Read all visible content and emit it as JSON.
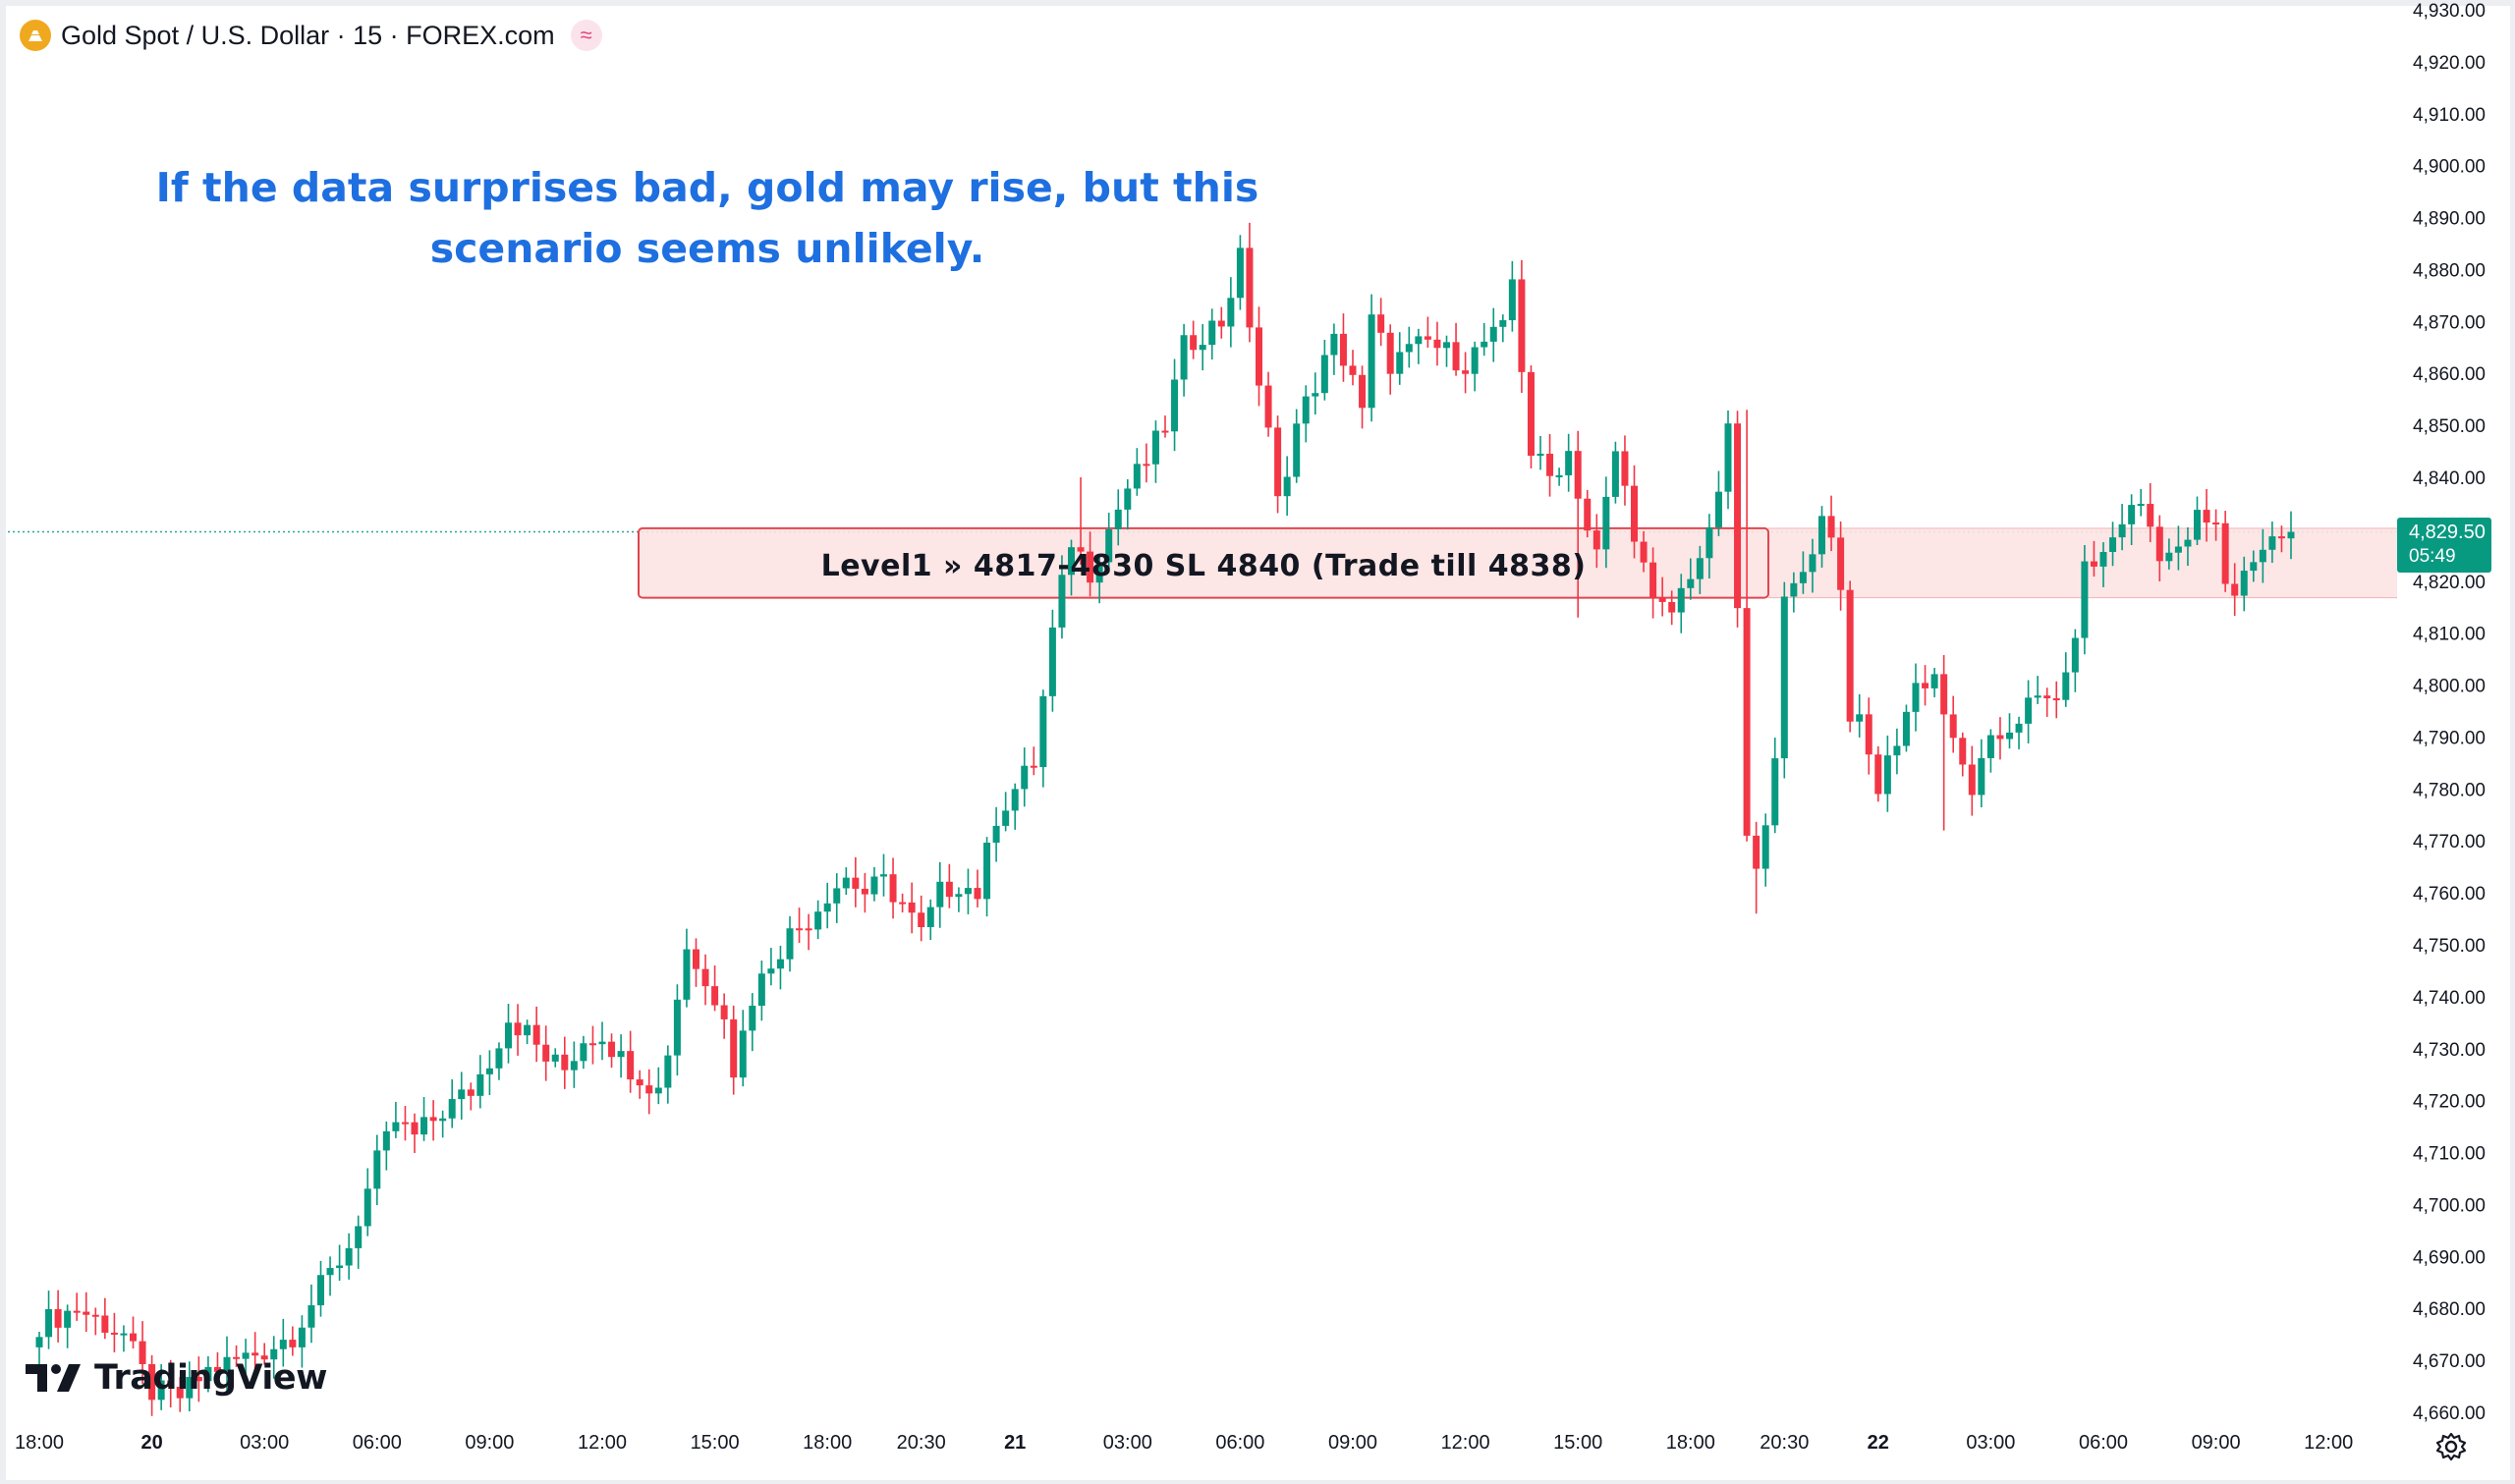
{
  "header": {
    "symbol_title": "Gold Spot / U.S. Dollar · 15 · FOREX.com",
    "symbol_icon": "gold-coin-icon",
    "badge_glyph": "≈",
    "badge_icon": "market-status-icon"
  },
  "annotation": {
    "text_line1": "If the data surprises bad, gold may rise, but this",
    "text_line2": "scenario seems unlikely."
  },
  "zone": {
    "label": "Level1 » 4817-4830 SL 4840 (Trade till 4838)",
    "from": 4817,
    "to": 4830
  },
  "price_label": {
    "price": "4,829.50",
    "countdown": "05:49"
  },
  "watermark": {
    "text": "TradingView",
    "icon": "tradingview-logo-icon"
  },
  "colors": {
    "up": "#089981",
    "down": "#f23645",
    "annotation": "#1e6fe0",
    "zone_fill": "#fde3e3",
    "zone_border": "#e0464f",
    "last_price_line": "#26a69a"
  },
  "chart_data": {
    "type": "candlestick",
    "title": "Gold Spot / U.S. Dollar · 15 · FOREX.com",
    "ylim": [
      4660,
      4930
    ],
    "y_ticks": [
      "4,660.00",
      "4,670.00",
      "4,680.00",
      "4,690.00",
      "4,700.00",
      "4,710.00",
      "4,720.00",
      "4,730.00",
      "4,740.00",
      "4,750.00",
      "4,760.00",
      "4,770.00",
      "4,780.00",
      "4,790.00",
      "4,800.00",
      "4,810.00",
      "4,820.00",
      "4,830.00",
      "4,840.00",
      "4,850.00",
      "4,860.00",
      "4,870.00",
      "4,880.00",
      "4,890.00",
      "4,900.00",
      "4,910.00",
      "4,920.00",
      "4,930.00"
    ],
    "x_ticks": [
      {
        "label": "18:00",
        "bar": 0,
        "bold": false
      },
      {
        "label": "20",
        "bar": 12,
        "bold": true
      },
      {
        "label": "03:00",
        "bar": 24,
        "bold": false
      },
      {
        "label": "06:00",
        "bar": 36,
        "bold": false
      },
      {
        "label": "09:00",
        "bar": 48,
        "bold": false
      },
      {
        "label": "12:00",
        "bar": 60,
        "bold": false
      },
      {
        "label": "15:00",
        "bar": 72,
        "bold": false
      },
      {
        "label": "18:00",
        "bar": 84,
        "bold": false
      },
      {
        "label": "20:30",
        "bar": 94,
        "bold": false
      },
      {
        "label": "21",
        "bar": 104,
        "bold": true
      },
      {
        "label": "03:00",
        "bar": 116,
        "bold": false
      },
      {
        "label": "06:00",
        "bar": 128,
        "bold": false
      },
      {
        "label": "09:00",
        "bar": 140,
        "bold": false
      },
      {
        "label": "12:00",
        "bar": 152,
        "bold": false
      },
      {
        "label": "15:00",
        "bar": 164,
        "bold": false
      },
      {
        "label": "18:00",
        "bar": 176,
        "bold": false
      },
      {
        "label": "20:30",
        "bar": 186,
        "bold": false
      },
      {
        "label": "22",
        "bar": 196,
        "bold": true
      },
      {
        "label": "03:00",
        "bar": 208,
        "bold": false
      },
      {
        "label": "06:00",
        "bar": 220,
        "bold": false
      },
      {
        "label": "09:00",
        "bar": 232,
        "bold": false
      },
      {
        "label": "12:00",
        "bar": 244,
        "bold": false
      }
    ],
    "last_price": 4829.5,
    "close_path": [
      [
        0,
        4677
      ],
      [
        4,
        4680
      ],
      [
        9,
        4675
      ],
      [
        12,
        4664
      ],
      [
        15,
        4663
      ],
      [
        18,
        4668
      ],
      [
        21,
        4670
      ],
      [
        24,
        4672
      ],
      [
        27,
        4675
      ],
      [
        30,
        4684
      ],
      [
        33,
        4692
      ],
      [
        36,
        4708
      ],
      [
        38,
        4716
      ],
      [
        40,
        4713
      ],
      [
        43,
        4718
      ],
      [
        46,
        4722
      ],
      [
        48,
        4728
      ],
      [
        50,
        4736
      ],
      [
        52,
        4733
      ],
      [
        54,
        4728
      ],
      [
        56,
        4726
      ],
      [
        58,
        4732
      ],
      [
        60,
        4733
      ],
      [
        62,
        4728
      ],
      [
        64,
        4725
      ],
      [
        66,
        4722
      ],
      [
        67,
        4730
      ],
      [
        69,
        4750
      ],
      [
        71,
        4742
      ],
      [
        73,
        4738
      ],
      [
        74,
        4726
      ],
      [
        76,
        4740
      ],
      [
        78,
        4747
      ],
      [
        80,
        4752
      ],
      [
        82,
        4755
      ],
      [
        84,
        4760
      ],
      [
        86,
        4763
      ],
      [
        88,
        4760
      ],
      [
        90,
        4762
      ],
      [
        92,
        4758
      ],
      [
        94,
        4752
      ],
      [
        96,
        4760
      ],
      [
        98,
        4762
      ],
      [
        100,
        4760
      ],
      [
        102,
        4775
      ],
      [
        104,
        4780
      ],
      [
        106,
        4785
      ],
      [
        108,
        4810
      ],
      [
        110,
        4828
      ],
      [
        112,
        4822
      ],
      [
        114,
        4830
      ],
      [
        116,
        4838
      ],
      [
        118,
        4843
      ],
      [
        120,
        4850
      ],
      [
        122,
        4865
      ],
      [
        124,
        4868
      ],
      [
        126,
        4870
      ],
      [
        128,
        4882
      ],
      [
        130,
        4858
      ],
      [
        131,
        4848
      ],
      [
        132,
        4835
      ],
      [
        134,
        4850
      ],
      [
        136,
        4858
      ],
      [
        138,
        4866
      ],
      [
        140,
        4860
      ],
      [
        141,
        4852
      ],
      [
        142,
        4870
      ],
      [
        144,
        4862
      ],
      [
        146,
        4864
      ],
      [
        148,
        4866
      ],
      [
        150,
        4864
      ],
      [
        152,
        4862
      ],
      [
        154,
        4866
      ],
      [
        156,
        4868
      ],
      [
        157,
        4878
      ],
      [
        159,
        4845
      ],
      [
        161,
        4840
      ],
      [
        163,
        4845
      ],
      [
        165,
        4830
      ],
      [
        166,
        4825
      ],
      [
        168,
        4845
      ],
      [
        170,
        4830
      ],
      [
        172,
        4815
      ],
      [
        174,
        4814
      ],
      [
        176,
        4822
      ],
      [
        178,
        4828
      ],
      [
        180,
        4848
      ],
      [
        181,
        4815
      ],
      [
        182,
        4770
      ],
      [
        183,
        4763
      ],
      [
        185,
        4788
      ],
      [
        186,
        4815
      ],
      [
        188,
        4822
      ],
      [
        190,
        4832
      ],
      [
        191,
        4830
      ],
      [
        192,
        4818
      ],
      [
        193,
        4795
      ],
      [
        194,
        4792
      ],
      [
        196,
        4780
      ],
      [
        198,
        4790
      ],
      [
        200,
        4800
      ],
      [
        202,
        4802
      ],
      [
        204,
        4788
      ],
      [
        206,
        4780
      ],
      [
        208,
        4788
      ],
      [
        210,
        4792
      ],
      [
        212,
        4796
      ],
      [
        214,
        4797
      ],
      [
        216,
        4800
      ],
      [
        218,
        4822
      ],
      [
        220,
        4825
      ],
      [
        222,
        4832
      ],
      [
        224,
        4835
      ],
      [
        226,
        4826
      ],
      [
        228,
        4825
      ],
      [
        230,
        4832
      ],
      [
        232,
        4830
      ],
      [
        233,
        4820
      ],
      [
        234,
        4818
      ],
      [
        236,
        4825
      ],
      [
        238,
        4828
      ],
      [
        240,
        4829.5
      ]
    ],
    "spikes": [
      {
        "bar": 129,
        "high": 4889
      },
      {
        "bar": 158,
        "high": 4880
      },
      {
        "bar": 183,
        "low": 4756
      },
      {
        "bar": 182,
        "high": 4853
      },
      {
        "bar": 203,
        "low": 4772
      },
      {
        "bar": 206,
        "low": 4775
      },
      {
        "bar": 111,
        "high": 4840
      },
      {
        "bar": 164,
        "low": 4813
      }
    ]
  }
}
